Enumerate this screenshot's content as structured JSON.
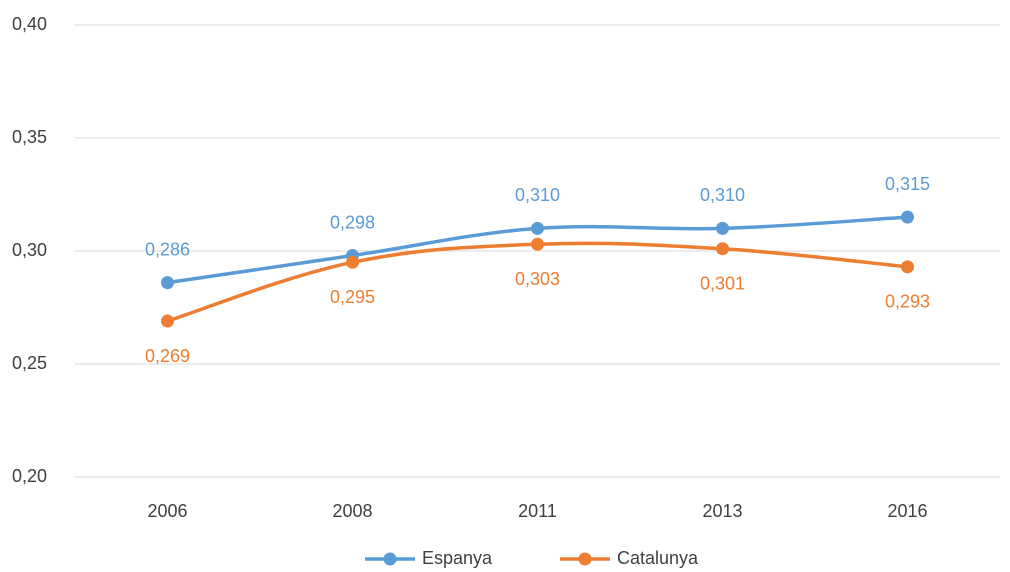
{
  "chart_data": {
    "type": "line",
    "categories": [
      "2006",
      "2008",
      "2011",
      "2013",
      "2016"
    ],
    "series": [
      {
        "name": "Espanya",
        "color": "#5b9bd5",
        "values": [
          0.286,
          0.298,
          0.31,
          0.31,
          0.315
        ],
        "value_labels": [
          "0,286",
          "0,298",
          "0,310",
          "0,310",
          "0,315"
        ]
      },
      {
        "name": "Catalunya",
        "color": "#ed7d31",
        "values": [
          0.269,
          0.295,
          0.303,
          0.301,
          0.293
        ],
        "value_labels": [
          "0,269",
          "0,295",
          "0,303",
          "0,301",
          "0,293"
        ]
      }
    ],
    "ylim": [
      0.2,
      0.4
    ],
    "yticks": [
      {
        "value": 0.2,
        "label": "0,20"
      },
      {
        "value": 0.25,
        "label": "0,25"
      },
      {
        "value": 0.3,
        "label": "0,30"
      },
      {
        "value": 0.35,
        "label": "0,35"
      },
      {
        "value": 0.4,
        "label": "0,40"
      }
    ],
    "grid": true,
    "legend": "bottom"
  }
}
